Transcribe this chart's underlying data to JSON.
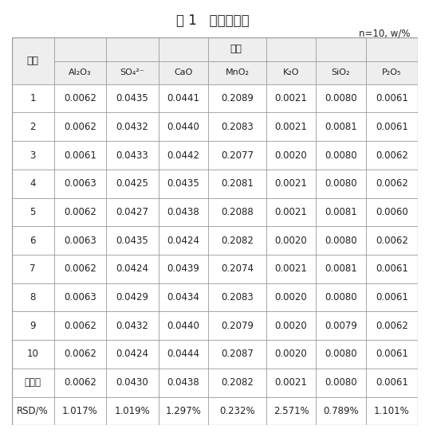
{
  "title": "表 1   精密度试验",
  "subtitle": "n=10, w/%",
  "col_header_group": "组分",
  "col0_header": "序号",
  "col_headers": [
    "Al₂O₃",
    "SO₄²⁻",
    "CaO",
    "MnO₂",
    "K₂O",
    "SiO₂",
    "P₂O₅"
  ],
  "row_labels": [
    "1",
    "2",
    "3",
    "4",
    "5",
    "6",
    "7",
    "8",
    "9",
    "10",
    "平均值",
    "RSD/%"
  ],
  "data": [
    [
      "0.0062",
      "0.0435",
      "0.0441",
      "0.2089",
      "0.0021",
      "0.0080",
      "0.0061"
    ],
    [
      "0.0062",
      "0.0432",
      "0.0440",
      "0.2083",
      "0.0021",
      "0.0081",
      "0.0061"
    ],
    [
      "0.0061",
      "0.0433",
      "0.0442",
      "0.2077",
      "0.0020",
      "0.0080",
      "0.0062"
    ],
    [
      "0.0063",
      "0.0425",
      "0.0435",
      "0.2081",
      "0.0021",
      "0.0080",
      "0.0062"
    ],
    [
      "0.0062",
      "0.0427",
      "0.0438",
      "0.2088",
      "0.0021",
      "0.0081",
      "0.0060"
    ],
    [
      "0.0063",
      "0.0435",
      "0.0424",
      "0.2082",
      "0.0020",
      "0.0080",
      "0.0062"
    ],
    [
      "0.0062",
      "0.0424",
      "0.0439",
      "0.2074",
      "0.0021",
      "0.0081",
      "0.0061"
    ],
    [
      "0.0063",
      "0.0429",
      "0.0434",
      "0.2083",
      "0.0020",
      "0.0080",
      "0.0061"
    ],
    [
      "0.0062",
      "0.0432",
      "0.0440",
      "0.2079",
      "0.0020",
      "0.0079",
      "0.0062"
    ],
    [
      "0.0062",
      "0.0424",
      "0.0444",
      "0.2087",
      "0.0020",
      "0.0080",
      "0.0061"
    ],
    [
      "0.0062",
      "0.0430",
      "0.0438",
      "0.2082",
      "0.0021",
      "0.0080",
      "0.0061"
    ],
    [
      "1.017%",
      "1.019%",
      "1.297%",
      "0.232%",
      "2.571%",
      "0.789%",
      "1.101%"
    ]
  ],
  "bg_color": "#ffffff",
  "line_color": "#999999",
  "text_color": "#222222",
  "header_bg": "#eeeeee",
  "font_size": 8.5,
  "title_font_size": 12
}
